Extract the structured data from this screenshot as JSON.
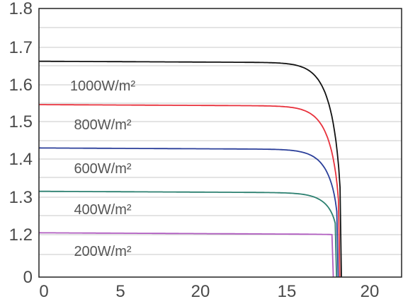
{
  "chart_data": {
    "type": "line",
    "title": "",
    "xlabel": "",
    "ylabel": "",
    "grid": "horizontal",
    "x_ticks": [
      "0",
      "5",
      "20",
      "15",
      "20"
    ],
    "y_ticks": [
      "0",
      "1.2",
      "1.3",
      "1.4",
      "1.5",
      "1.6",
      "1.7",
      "1.8"
    ],
    "series": [
      {
        "name": "1000W/m²",
        "color": "#111111",
        "isc": 1.66,
        "voc": 18.6
      },
      {
        "name": "800W/m²",
        "color": "#e8313c",
        "isc": 1.545,
        "voc": 18.5
      },
      {
        "name": "600W/m²",
        "color": "#2b3f9a",
        "isc": 1.43,
        "voc": 18.4
      },
      {
        "name": "400W/m²",
        "color": "#2c8070",
        "isc": 1.315,
        "voc": 18.3
      },
      {
        "name": "200W/m²",
        "color": "#b05cc0",
        "isc": 1.205,
        "voc": 18.1
      }
    ]
  }
}
